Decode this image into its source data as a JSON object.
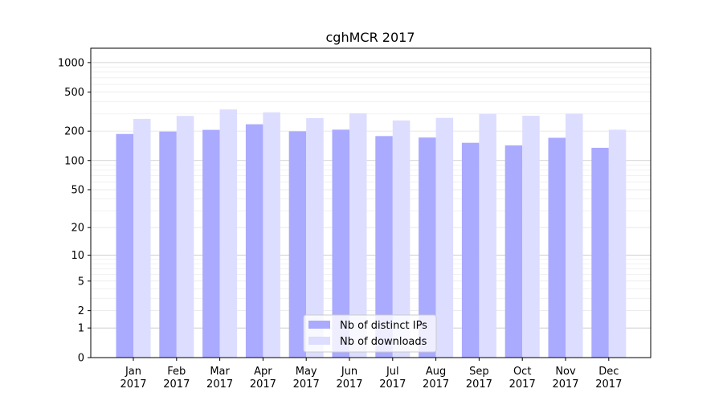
{
  "chart_data": {
    "type": "bar",
    "title": "cghMCR 2017",
    "xlabel": "",
    "ylabel": "",
    "yscale": "log(1+y)",
    "ylim": [
      0,
      1400
    ],
    "yticks": [
      0,
      1,
      2,
      5,
      10,
      20,
      50,
      100,
      200,
      500,
      1000
    ],
    "ytick_labels": [
      "0",
      "1",
      "2",
      "5",
      "10",
      "20",
      "50",
      "100",
      "200",
      "500",
      "1000"
    ],
    "grid": true,
    "legend_position": "bottom-center",
    "categories": [
      "Jan\n2017",
      "Feb\n2017",
      "Mar\n2017",
      "Apr\n2017",
      "May\n2017",
      "Jun\n2017",
      "Jul\n2017",
      "Aug\n2017",
      "Sep\n2017",
      "Oct\n2017",
      "Nov\n2017",
      "Dec\n2017"
    ],
    "series": [
      {
        "name": "Nb of distinct IPs",
        "color": "#aaaaff",
        "values": [
          187,
          198,
          206,
          235,
          199,
          207,
          178,
          172,
          152,
          143,
          171,
          135
        ]
      },
      {
        "name": "Nb of downloads",
        "color": "#ddddff",
        "values": [
          267,
          286,
          333,
          311,
          272,
          304,
          257,
          273,
          301,
          287,
          302,
          207
        ]
      }
    ]
  }
}
